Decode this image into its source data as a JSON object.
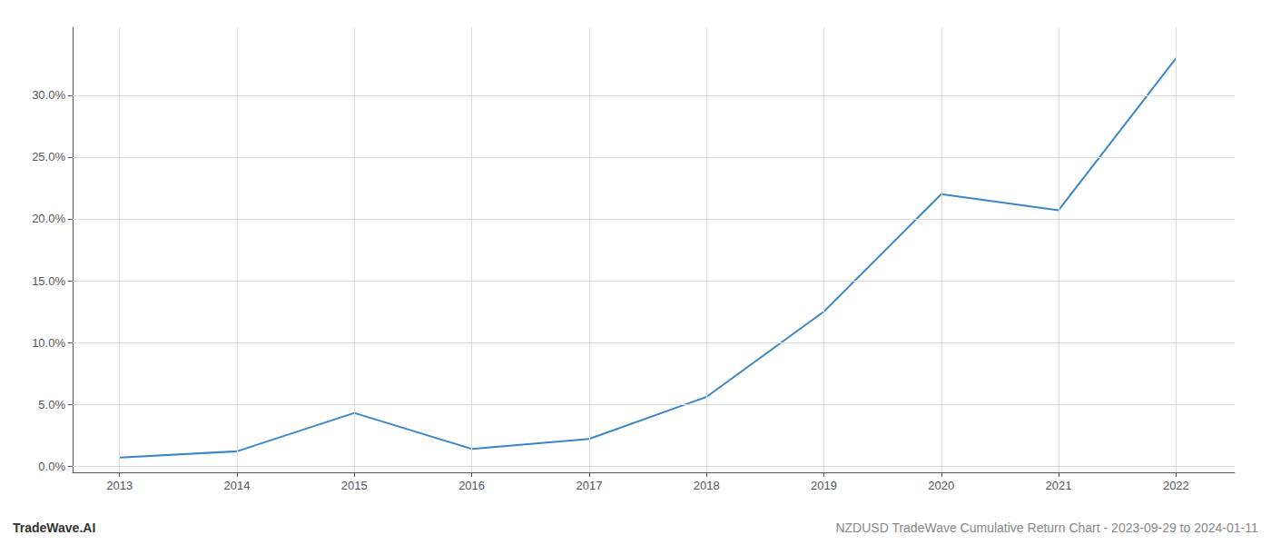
{
  "chart_data": {
    "type": "line",
    "x": [
      2013,
      2014,
      2015,
      2016,
      2017,
      2018,
      2019,
      2020,
      2021,
      2022
    ],
    "values": [
      0.007,
      0.012,
      0.043,
      0.014,
      0.022,
      0.056,
      0.125,
      0.22,
      0.207,
      0.33
    ],
    "color": "#3a86c8",
    "xlim": [
      2012.6,
      2022.5
    ],
    "xticks": [
      2013,
      2014,
      2015,
      2016,
      2017,
      2018,
      2019,
      2020,
      2021,
      2022
    ],
    "ylim": [
      -0.005,
      0.355
    ],
    "yticks": [
      {
        "value": 0.0,
        "label": "0.0%"
      },
      {
        "value": 0.05,
        "label": "5.0%"
      },
      {
        "value": 0.1,
        "label": "10.0%"
      },
      {
        "value": 0.15,
        "label": "15.0%"
      },
      {
        "value": 0.2,
        "label": "20.0%"
      },
      {
        "value": 0.25,
        "label": "25.0%"
      },
      {
        "value": 0.3,
        "label": "30.0%"
      }
    ],
    "grid": true,
    "annotations": [
      "TradeWave.AI",
      "NZDUSD TradeWave Cumulative Return Chart - 2023-09-29 to 2024-01-11"
    ]
  }
}
